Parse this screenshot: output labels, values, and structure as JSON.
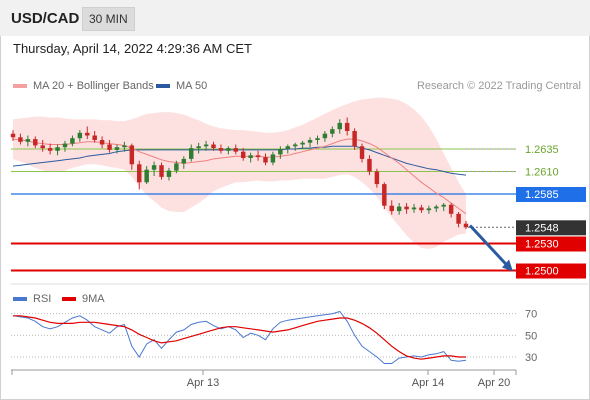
{
  "header": {
    "symbol": "USD/CAD",
    "timeframe": "30 MIN"
  },
  "datetime": "Thursday, April 14, 2022 4:29:36 AM CET",
  "legend": {
    "ma20": {
      "label": "MA 20 + Bollinger Bands",
      "color": "#f08080"
    },
    "ma50": {
      "label": "MA 50",
      "color": "#2c5aa0"
    }
  },
  "credit": "Research © 2022 Trading Central",
  "chart_data": [
    {
      "type": "candlestick",
      "ylim": [
        1.2485,
        1.2695
      ],
      "levels": [
        {
          "value": 1.2635,
          "label": "1.2635",
          "role": "resistance",
          "color": "#8bc34a"
        },
        {
          "value": 1.261,
          "label": "1.2610",
          "role": "resistance",
          "color": "#8bc34a"
        },
        {
          "value": 1.2585,
          "label": "1.2585",
          "role": "pivot",
          "color": "#1e6fe8"
        },
        {
          "value": 1.2548,
          "label": "1.2548",
          "role": "last",
          "color": "#333333"
        },
        {
          "value": 1.253,
          "label": "1.2530",
          "role": "support",
          "color": "#e00000"
        },
        {
          "value": 1.25,
          "label": "1.2500",
          "role": "support",
          "color": "#e00000"
        }
      ],
      "candles": [
        [
          1.2652,
          1.2656,
          1.2644,
          1.2648
        ],
        [
          1.2648,
          1.2652,
          1.264,
          1.2643
        ],
        [
          1.2643,
          1.265,
          1.2638,
          1.2646
        ],
        [
          1.2646,
          1.2649,
          1.2636,
          1.2639
        ],
        [
          1.2639,
          1.2645,
          1.2632,
          1.2636
        ],
        [
          1.2636,
          1.2641,
          1.2629,
          1.2633
        ],
        [
          1.2633,
          1.264,
          1.2628,
          1.2637
        ],
        [
          1.2637,
          1.2644,
          1.2632,
          1.2641
        ],
        [
          1.2641,
          1.265,
          1.2638,
          1.2647
        ],
        [
          1.2647,
          1.2656,
          1.2643,
          1.2653
        ],
        [
          1.2653,
          1.266,
          1.2646,
          1.265
        ],
        [
          1.265,
          1.2655,
          1.2642,
          1.2645
        ],
        [
          1.2645,
          1.2649,
          1.2636,
          1.264
        ],
        [
          1.264,
          1.2645,
          1.2631,
          1.2634
        ],
        [
          1.2634,
          1.264,
          1.263,
          1.2637
        ],
        [
          1.2637,
          1.2643,
          1.2632,
          1.2639
        ],
        [
          1.2639,
          1.2641,
          1.2612,
          1.2618
        ],
        [
          1.2618,
          1.2622,
          1.259,
          1.2598
        ],
        [
          1.2598,
          1.2616,
          1.2596,
          1.2612
        ],
        [
          1.2612,
          1.2621,
          1.2605,
          1.2617
        ],
        [
          1.2617,
          1.262,
          1.2601,
          1.2604
        ],
        [
          1.2604,
          1.2614,
          1.26,
          1.2611
        ],
        [
          1.2611,
          1.2622,
          1.2608,
          1.2619
        ],
        [
          1.2619,
          1.2627,
          1.2613,
          1.2624
        ],
        [
          1.2624,
          1.264,
          1.2621,
          1.2636
        ],
        [
          1.2636,
          1.2642,
          1.263,
          1.2638
        ],
        [
          1.2638,
          1.2644,
          1.2633,
          1.264
        ],
        [
          1.264,
          1.2643,
          1.2633,
          1.2636
        ],
        [
          1.2636,
          1.264,
          1.263,
          1.2633
        ],
        [
          1.2633,
          1.2638,
          1.2629,
          1.2636
        ],
        [
          1.2636,
          1.264,
          1.2629,
          1.2632
        ],
        [
          1.2632,
          1.2636,
          1.2622,
          1.2625
        ],
        [
          1.2625,
          1.2631,
          1.262,
          1.2628
        ],
        [
          1.2628,
          1.2633,
          1.2622,
          1.2626
        ],
        [
          1.2626,
          1.263,
          1.2617,
          1.262
        ],
        [
          1.262,
          1.2632,
          1.2617,
          1.2629
        ],
        [
          1.2629,
          1.2638,
          1.2624,
          1.2635
        ],
        [
          1.2635,
          1.264,
          1.263,
          1.2638
        ],
        [
          1.2638,
          1.2642,
          1.2633,
          1.264
        ],
        [
          1.264,
          1.2644,
          1.2635,
          1.2642
        ],
        [
          1.2642,
          1.2648,
          1.2637,
          1.2645
        ],
        [
          1.2645,
          1.265,
          1.264,
          1.2647
        ],
        [
          1.2647,
          1.2655,
          1.2643,
          1.2652
        ],
        [
          1.2652,
          1.266,
          1.2648,
          1.2657
        ],
        [
          1.2657,
          1.2668,
          1.2652,
          1.2664
        ],
        [
          1.2664,
          1.267,
          1.265,
          1.2655
        ],
        [
          1.2655,
          1.2658,
          1.2634,
          1.2638
        ],
        [
          1.2638,
          1.2641,
          1.262,
          1.2624
        ],
        [
          1.2624,
          1.2628,
          1.2606,
          1.261
        ],
        [
          1.261,
          1.2613,
          1.2592,
          1.2596
        ],
        [
          1.2596,
          1.2598,
          1.2568,
          1.2572
        ],
        [
          1.2572,
          1.2578,
          1.2562,
          1.2566
        ],
        [
          1.2566,
          1.2575,
          1.2562,
          1.2571
        ],
        [
          1.2571,
          1.2575,
          1.2563,
          1.2568
        ],
        [
          1.2568,
          1.2574,
          1.2564,
          1.257
        ],
        [
          1.257,
          1.2573,
          1.2564,
          1.2567
        ],
        [
          1.2567,
          1.2572,
          1.2563,
          1.2569
        ],
        [
          1.2569,
          1.2573,
          1.2565,
          1.2571
        ],
        [
          1.2571,
          1.2575,
          1.2566,
          1.2573
        ],
        [
          1.2573,
          1.2575,
          1.2559,
          1.2563
        ],
        [
          1.2563,
          1.2565,
          1.2548,
          1.2552
        ],
        [
          1.2552,
          1.2555,
          1.2546,
          1.2548
        ]
      ],
      "ma20": [
        1.2646,
        1.2645,
        1.2644,
        1.2642,
        1.2641,
        1.264,
        1.264,
        1.264,
        1.2641,
        1.2642,
        1.2643,
        1.2643,
        1.2642,
        1.2641,
        1.264,
        1.2639,
        1.2636,
        1.2632,
        1.2629,
        1.2626,
        1.2623,
        1.2621,
        1.262,
        1.2619,
        1.262,
        1.2621,
        1.2622,
        1.2624,
        1.2625,
        1.2626,
        1.2627,
        1.2627,
        1.2627,
        1.2627,
        1.2626,
        1.2626,
        1.2627,
        1.2628,
        1.263,
        1.2632,
        1.2634,
        1.2636,
        1.2638,
        1.2641,
        1.2644,
        1.2646,
        1.2646,
        1.2644,
        1.2641,
        1.2637,
        1.2631,
        1.2625,
        1.2619,
        1.2612,
        1.2605,
        1.2598,
        1.2592,
        1.2586,
        1.2581,
        1.2575,
        1.2569,
        1.2563
      ],
      "bb_upper": [
        1.2668,
        1.2669,
        1.267,
        1.2671,
        1.2671,
        1.267,
        1.267,
        1.2669,
        1.2668,
        1.2668,
        1.2668,
        1.2668,
        1.2667,
        1.2667,
        1.2666,
        1.2666,
        1.2668,
        1.2671,
        1.2674,
        1.2675,
        1.2676,
        1.2676,
        1.2675,
        1.2673,
        1.267,
        1.2667,
        1.2663,
        1.266,
        1.2658,
        1.2657,
        1.2656,
        1.2656,
        1.2655,
        1.2654,
        1.2653,
        1.2653,
        1.2654,
        1.2656,
        1.2659,
        1.2662,
        1.2666,
        1.267,
        1.2674,
        1.2678,
        1.2682,
        1.2685,
        1.2688,
        1.269,
        1.2691,
        1.2692,
        1.2692,
        1.2691,
        1.2689,
        1.2685,
        1.2679,
        1.2671,
        1.266,
        1.2646,
        1.263,
        1.2614,
        1.2598,
        1.2585
      ],
      "bb_lower": [
        1.2624,
        1.2621,
        1.2618,
        1.2614,
        1.2611,
        1.261,
        1.261,
        1.2611,
        1.2614,
        1.2616,
        1.2618,
        1.2618,
        1.2617,
        1.2615,
        1.2614,
        1.2612,
        1.2604,
        1.2593,
        1.2584,
        1.2577,
        1.257,
        1.2566,
        1.2565,
        1.2565,
        1.257,
        1.2575,
        1.2581,
        1.2588,
        1.2592,
        1.2595,
        1.2598,
        1.2598,
        1.2599,
        1.26,
        1.2599,
        1.2599,
        1.26,
        1.26,
        1.2601,
        1.2602,
        1.2602,
        1.2602,
        1.2602,
        1.2604,
        1.2606,
        1.2607,
        1.2604,
        1.2598,
        1.2591,
        1.2582,
        1.257,
        1.2559,
        1.2549,
        1.2539,
        1.2531,
        1.2525,
        1.2524,
        1.2526,
        1.2532,
        1.2536,
        1.254,
        1.2541
      ],
      "ma50": [
        1.2616,
        1.2617,
        1.2618,
        1.2619,
        1.262,
        1.2621,
        1.2622,
        1.2623,
        1.2624,
        1.2625,
        1.2627,
        1.2628,
        1.2629,
        1.263,
        1.2632,
        1.2633,
        1.2634,
        1.2634,
        1.2634,
        1.2634,
        1.2634,
        1.2634,
        1.2634,
        1.2634,
        1.2634,
        1.2634,
        1.2634,
        1.2634,
        1.2634,
        1.2634,
        1.2634,
        1.2634,
        1.2634,
        1.2634,
        1.2634,
        1.2634,
        1.2634,
        1.2635,
        1.2635,
        1.2636,
        1.2636,
        1.2637,
        1.2637,
        1.2638,
        1.2638,
        1.2638,
        1.2638,
        1.2636,
        1.2634,
        1.2631,
        1.2628,
        1.2625,
        1.2622,
        1.2619,
        1.2617,
        1.2615,
        1.2613,
        1.2612,
        1.261,
        1.2608,
        1.2607,
        1.2606
      ],
      "forecast_arrow": {
        "from": 1.255,
        "to": 1.25
      }
    },
    {
      "type": "line",
      "legend": [
        {
          "name": "RSI",
          "color": "#4a78d0"
        },
        {
          "name": "9MA",
          "color": "#e00000"
        }
      ],
      "ylim": [
        18,
        78
      ],
      "yticks": [
        70,
        50,
        30
      ],
      "xticks": [
        "Apr 13",
        "Apr 14",
        "Apr 20"
      ],
      "series": [
        {
          "name": "RSI",
          "values": [
            68,
            67,
            66,
            63,
            58,
            56,
            58,
            62,
            66,
            68,
            64,
            58,
            55,
            52,
            58,
            60,
            40,
            30,
            42,
            46,
            38,
            46,
            53,
            55,
            60,
            62,
            63,
            59,
            56,
            58,
            55,
            48,
            52,
            50,
            46,
            56,
            62,
            64,
            65,
            66,
            67,
            68,
            69,
            70,
            72,
            63,
            50,
            40,
            35,
            30,
            24,
            24,
            29,
            30,
            31,
            30,
            32,
            33,
            35,
            27,
            26,
            27
          ]
        },
        {
          "name": "9MA",
          "values": [
            68,
            68,
            67,
            66,
            64,
            62,
            61,
            61,
            61,
            62,
            62,
            62,
            61,
            60,
            59,
            58,
            55,
            51,
            48,
            45,
            43,
            44,
            45,
            47,
            49,
            51,
            53,
            55,
            57,
            58,
            58,
            57,
            56,
            55,
            54,
            53,
            54,
            55,
            57,
            59,
            61,
            63,
            64,
            65,
            66,
            66,
            64,
            61,
            57,
            52,
            46,
            40,
            35,
            31,
            29,
            28,
            29,
            30,
            31,
            31,
            30,
            30
          ]
        }
      ]
    }
  ]
}
